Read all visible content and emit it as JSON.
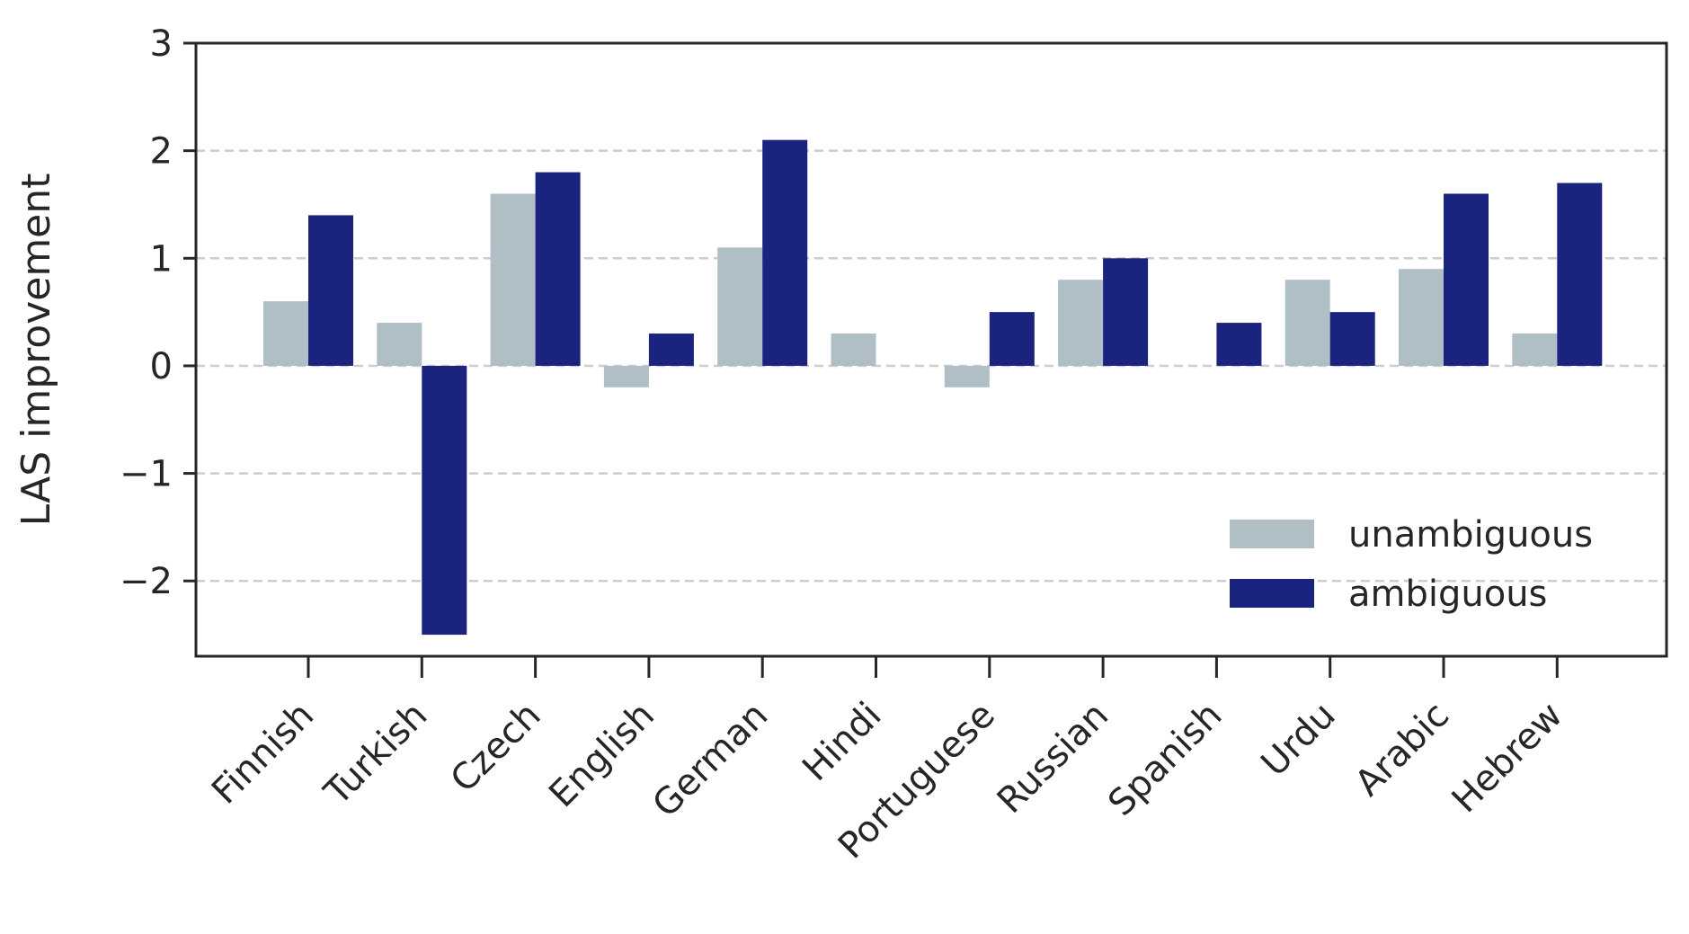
{
  "chart_data": {
    "type": "bar",
    "title": "",
    "xlabel": "",
    "ylabel": "LAS improvement",
    "categories": [
      "Finnish",
      "Turkish",
      "Czech",
      "English",
      "German",
      "Hindi",
      "Portuguese",
      "Russian",
      "Spanish",
      "Urdu",
      "Arabic",
      "Hebrew"
    ],
    "series": [
      {
        "name": "unambiguous",
        "color": "#b0bec5",
        "values": [
          0.6,
          0.4,
          1.6,
          -0.2,
          1.1,
          0.3,
          -0.2,
          0.8,
          0.0,
          0.8,
          0.9,
          0.3
        ]
      },
      {
        "name": "ambiguous",
        "color": "#1a237e",
        "values": [
          1.4,
          -2.5,
          1.8,
          0.3,
          2.1,
          0.0,
          0.5,
          1.0,
          0.4,
          0.5,
          1.6,
          1.7
        ]
      }
    ],
    "ylim": [
      -2.7,
      3
    ],
    "yticks": [
      -2,
      -1,
      0,
      1,
      2,
      3
    ],
    "ytick_labels": [
      "−2",
      "−1",
      "0",
      "1",
      "2",
      "3"
    ],
    "grid": "y dashed",
    "legend_position": "lower-right"
  }
}
